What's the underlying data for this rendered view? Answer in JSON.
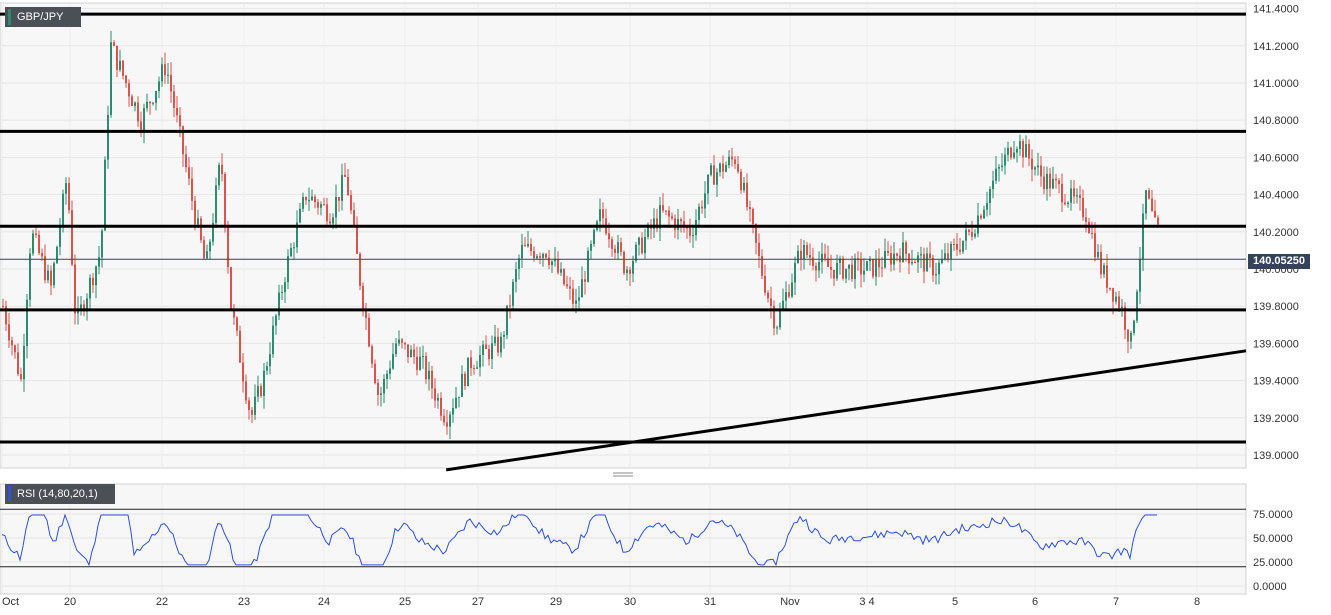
{
  "chart_data": [
    {
      "type": "candlestick",
      "title": "GBP/JPY",
      "y_ticks": [
        "141.4000",
        "141.2000",
        "141.0000",
        "140.8000",
        "140.6000",
        "140.4000",
        "140.2000",
        "140.0000",
        "139.8000",
        "139.6000",
        "139.4000",
        "139.2000",
        "139.0000"
      ],
      "ylim": [
        138.93,
        141.43
      ],
      "x_ticks": [
        "Oct",
        "20",
        "22",
        "23",
        "24",
        "25",
        "27",
        "29",
        "30",
        "31",
        "Nov",
        "3 4",
        "5",
        "6",
        "7",
        "8"
      ],
      "last_price": "140.05250",
      "horizontal_levels": [
        141.37,
        140.74,
        140.23,
        139.78,
        139.07
      ],
      "trendline": {
        "from": [
          0.326,
          138.92
        ],
        "to": [
          1.0,
          139.56
        ]
      },
      "grid": true,
      "colors": {
        "up": "#2e8b6e",
        "down": "#d9534f",
        "levels": "#000000",
        "last_price_line": "#34425a"
      }
    },
    {
      "type": "line",
      "title": "RSI (14,80,20,1)",
      "y_ticks": [
        "75.0000",
        "50.0000",
        "25.0000",
        "0.0000"
      ],
      "ylim": [
        0,
        100
      ],
      "upper_band": 80,
      "lower_band": 20,
      "colors": {
        "line": "#2f4fd6"
      }
    }
  ]
}
